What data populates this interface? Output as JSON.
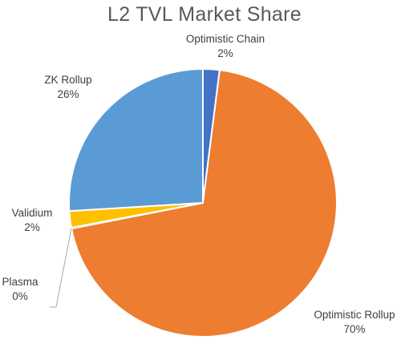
{
  "chart_data": {
    "type": "pie",
    "title": "L2 TVL Market Share",
    "slices": [
      {
        "name": "Optimistic Chain",
        "value": 2,
        "label": "2%",
        "color": "#4472c4"
      },
      {
        "name": "Optimistic Rollup",
        "value": 70,
        "label": "70%",
        "color": "#ed7d31"
      },
      {
        "name": "Plasma",
        "value": 0.1,
        "label": "0%",
        "color": "#a5a5a5"
      },
      {
        "name": "Validium",
        "value": 2,
        "label": "2%",
        "color": "#ffc000"
      },
      {
        "name": "ZK Rollup",
        "value": 26,
        "label": "26%",
        "color": "#5b9bd5"
      }
    ],
    "legend": "none"
  }
}
